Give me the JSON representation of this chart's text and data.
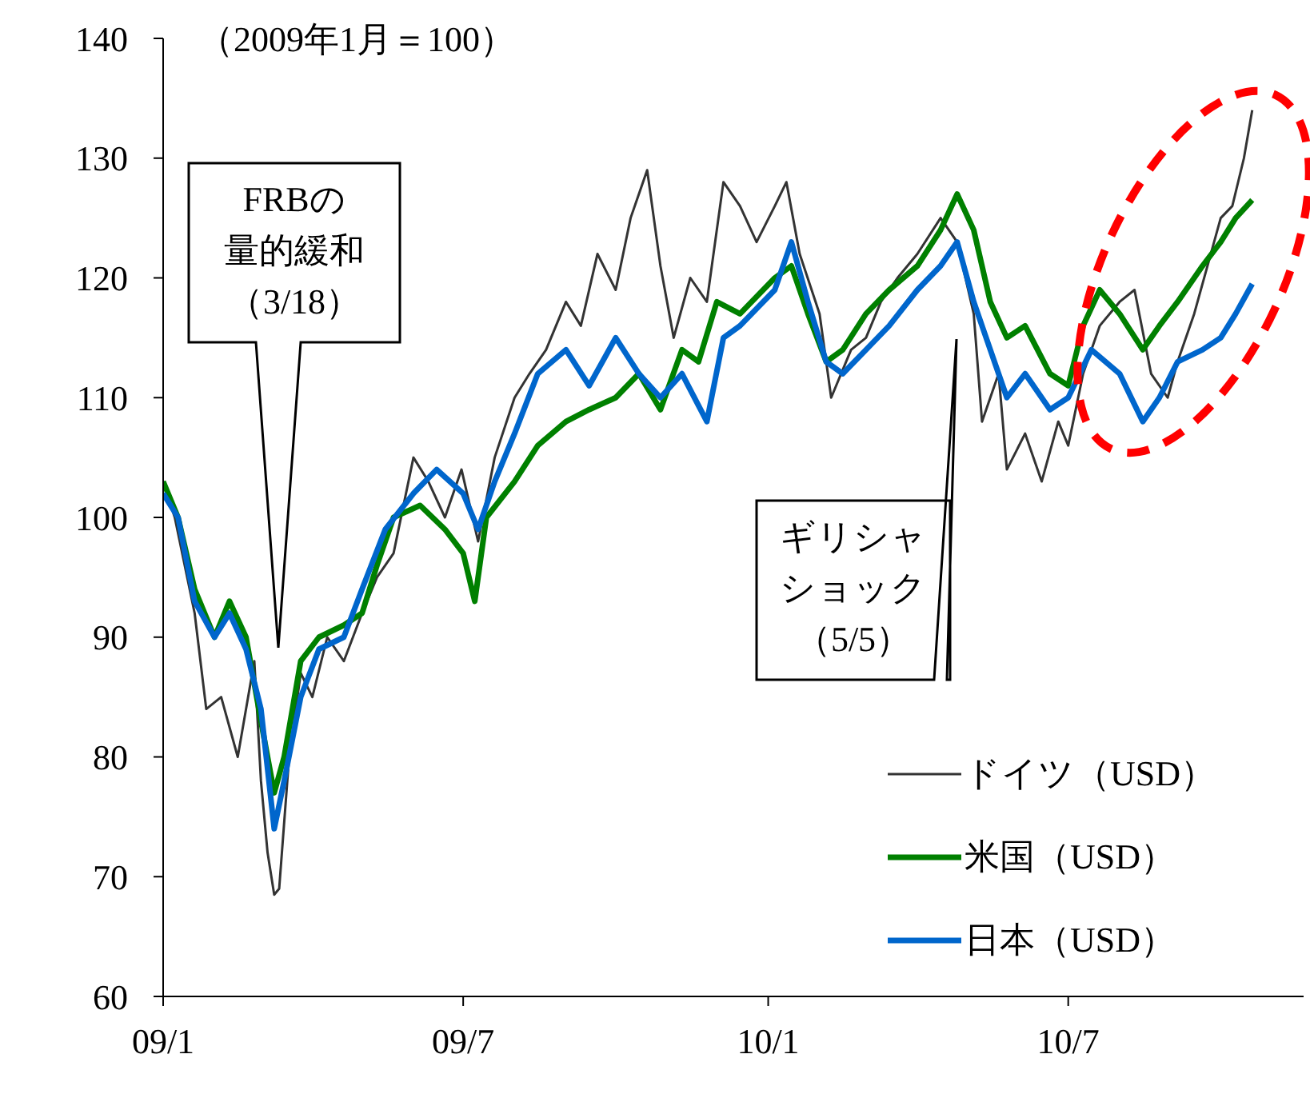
{
  "chart_data": {
    "type": "line",
    "x": [
      "2009-01-01",
      "2009-01-08",
      "2009-01-20",
      "2009-01-27",
      "2009-02-05",
      "2009-02-15",
      "2009-02-25",
      "2009-03-01",
      "2009-03-05",
      "2009-03-09",
      "2009-03-12",
      "2009-03-18",
      "2009-03-25",
      "2009-04-01",
      "2009-04-10",
      "2009-04-20",
      "2009-05-01",
      "2009-05-10",
      "2009-05-20",
      "2009-06-01",
      "2009-06-10",
      "2009-06-20",
      "2009-06-30",
      "2009-07-10",
      "2009-07-20",
      "2009-08-01",
      "2009-08-10",
      "2009-08-20",
      "2009-09-01",
      "2009-09-10",
      "2009-09-20",
      "2009-10-01",
      "2009-10-10",
      "2009-10-20",
      "2009-10-28",
      "2009-11-05",
      "2009-11-15",
      "2009-11-25",
      "2009-12-05",
      "2009-12-15",
      "2009-12-25",
      "2010-01-05",
      "2010-01-12",
      "2010-01-20",
      "2010-02-01",
      "2010-02-08",
      "2010-02-20",
      "2010-03-01",
      "2010-03-10",
      "2010-03-20",
      "2010-04-01",
      "2010-04-15",
      "2010-04-25",
      "2010-05-05",
      "2010-05-10",
      "2010-05-20",
      "2010-05-25",
      "2010-06-05",
      "2010-06-15",
      "2010-06-25",
      "2010-07-01",
      "2010-07-10",
      "2010-07-20",
      "2010-08-01",
      "2010-08-10",
      "2010-08-20",
      "2010-08-30",
      "2010-09-05",
      "2010-09-15",
      "2010-09-25",
      "2010-10-01",
      "2010-10-08",
      "2010-10-15",
      "2010-10-20"
    ],
    "series": [
      {
        "name": "ドイツ（USD）",
        "color": "#333333",
        "values": [
          103,
          100,
          92,
          84,
          85,
          80,
          88,
          78,
          72,
          68.5,
          69,
          80,
          87,
          85,
          90,
          88,
          92,
          95,
          97,
          105,
          103,
          100,
          104,
          98,
          105,
          110,
          112,
          114,
          118,
          116,
          122,
          119,
          125,
          129,
          121,
          115,
          120,
          118,
          128,
          126,
          123,
          126,
          128,
          122,
          117,
          110,
          114,
          115,
          118,
          120,
          122,
          125,
          123,
          117,
          108,
          112,
          104,
          107,
          103,
          108,
          106,
          112,
          116,
          118,
          119,
          112,
          110,
          113,
          117,
          122,
          125,
          126,
          130,
          134
        ]
      },
      {
        "name": "米国（USD）",
        "color": "#008000",
        "x": [
          "2009-01-01",
          "2009-01-10",
          "2009-01-20",
          "2009-02-01",
          "2009-02-10",
          "2009-02-20",
          "2009-03-01",
          "2009-03-09",
          "2009-03-15",
          "2009-03-25",
          "2009-04-05",
          "2009-04-20",
          "2009-05-01",
          "2009-05-10",
          "2009-05-20",
          "2009-06-05",
          "2009-06-20",
          "2009-07-01",
          "2009-07-08",
          "2009-07-15",
          "2009-08-01",
          "2009-08-15",
          "2009-09-01",
          "2009-09-15",
          "2009-10-01",
          "2009-10-15",
          "2009-10-28",
          "2009-11-10",
          "2009-11-20",
          "2009-12-01",
          "2009-12-15",
          "2010-01-05",
          "2010-01-15",
          "2010-01-25",
          "2010-02-05",
          "2010-02-15",
          "2010-03-01",
          "2010-03-15",
          "2010-04-01",
          "2010-04-15",
          "2010-04-25",
          "2010-05-05",
          "2010-05-15",
          "2010-05-25",
          "2010-06-05",
          "2010-06-20",
          "2010-07-01",
          "2010-07-10",
          "2010-07-20",
          "2010-08-01",
          "2010-08-15",
          "2010-08-25",
          "2010-09-05",
          "2010-09-20",
          "2010-10-01",
          "2010-10-10",
          "2010-10-20"
        ],
        "values": [
          103,
          100,
          94,
          90,
          93,
          90,
          83,
          77,
          80,
          88,
          90,
          91,
          92,
          96,
          100,
          101,
          99,
          97,
          93,
          100,
          103,
          106,
          108,
          109,
          110,
          112,
          109,
          114,
          113,
          118,
          117,
          120,
          121,
          117,
          113,
          114,
          117,
          119,
          121,
          124,
          127,
          124,
          118,
          115,
          116,
          112,
          111,
          116,
          119,
          117,
          114,
          116,
          118,
          121,
          123,
          125,
          126.5
        ]
      },
      {
        "name": "日本（USD）",
        "color": "#0066cc",
        "x": [
          "2009-01-01",
          "2009-01-10",
          "2009-01-20",
          "2009-02-01",
          "2009-02-10",
          "2009-02-20",
          "2009-03-01",
          "2009-03-09",
          "2009-03-15",
          "2009-03-25",
          "2009-04-05",
          "2009-04-20",
          "2009-05-01",
          "2009-05-15",
          "2009-06-01",
          "2009-06-15",
          "2009-07-01",
          "2009-07-10",
          "2009-07-20",
          "2009-08-01",
          "2009-08-15",
          "2009-09-01",
          "2009-09-15",
          "2009-10-01",
          "2009-10-15",
          "2009-10-28",
          "2009-11-10",
          "2009-11-25",
          "2009-12-05",
          "2009-12-15",
          "2010-01-05",
          "2010-01-15",
          "2010-01-25",
          "2010-02-05",
          "2010-02-15",
          "2010-03-01",
          "2010-03-15",
          "2010-04-01",
          "2010-04-15",
          "2010-04-25",
          "2010-05-05",
          "2010-05-15",
          "2010-05-25",
          "2010-06-05",
          "2010-06-20",
          "2010-07-01",
          "2010-07-15",
          "2010-08-01",
          "2010-08-15",
          "2010-08-25",
          "2010-09-05",
          "2010-09-20",
          "2010-10-01",
          "2010-10-10",
          "2010-10-20"
        ],
        "values": [
          102,
          100,
          93,
          90,
          92,
          89,
          84,
          74,
          78,
          85,
          89,
          90,
          94,
          99,
          102,
          104,
          102,
          99,
          103,
          107,
          112,
          114,
          111,
          115,
          112,
          110,
          112,
          108,
          115,
          116,
          119,
          123,
          118,
          113,
          112,
          114,
          116,
          119,
          121,
          123,
          118,
          114,
          110,
          112,
          109,
          110,
          114,
          112,
          108,
          110,
          113,
          114,
          115,
          117,
          119.5
        ]
      }
    ],
    "xlim": [
      "2009-01-01",
      "2010-11-20"
    ],
    "xticks": [
      {
        "value": "2009-01-01",
        "label": "09/1"
      },
      {
        "value": "2009-07-01",
        "label": "09/7"
      },
      {
        "value": "2010-01-01",
        "label": "10/1"
      },
      {
        "value": "2010-07-01",
        "label": "10/7"
      }
    ],
    "ylim": [
      60,
      140
    ],
    "yticks": [
      60,
      70,
      80,
      90,
      100,
      110,
      120,
      130,
      140
    ],
    "legend": "bottom right",
    "grid": false,
    "marker": "none",
    "line_style": "solid",
    "annotations": [
      "（2009年1月＝100）",
      "FRBの量的緩和（3/18）",
      "ギリシャショック（5/5）"
    ]
  }
}
